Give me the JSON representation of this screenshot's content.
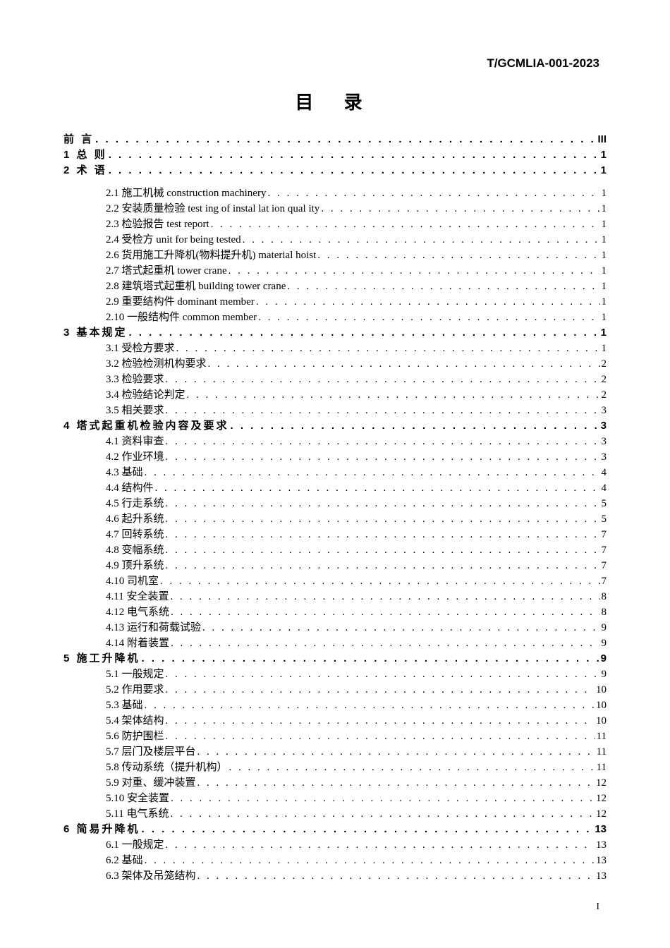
{
  "doc_code": "T/GCMLIA-001-2023",
  "toc_title": "目 录",
  "page_footer": "I",
  "entries": [
    {
      "level": 0,
      "label": "前 言",
      "page": "III"
    },
    {
      "level": 0,
      "label": "1 总 则",
      "page": "1"
    },
    {
      "level": 0,
      "label": "2 术 语",
      "page": "1",
      "preceded_by_spacer": false,
      "followed_by_spacer": true
    },
    {
      "level": 1,
      "label": "2.1 施工机械 construction machinery",
      "page": "1"
    },
    {
      "level": 1,
      "label": "2.2 安装质量检验 test ing of instal lat ion qual ity",
      "page": "1"
    },
    {
      "level": 1,
      "label": "2.3 检验报告 test report",
      "page": "1"
    },
    {
      "level": 1,
      "label": "2.4 受检方 unit for being tested",
      "page": "1"
    },
    {
      "level": 1,
      "label": "2.6 货用施工升降机(物料提升机) material hoist",
      "page": "1"
    },
    {
      "level": 1,
      "label": "2.7 塔式起重机 tower crane",
      "page": "1"
    },
    {
      "level": 1,
      "label": "2.8 建筑塔式起重机 building tower crane",
      "page": "1"
    },
    {
      "level": 1,
      "label": "2.9 重要结构件 dominant member",
      "page": "1"
    },
    {
      "level": 1,
      "label": "2.10 一般结构件 common member",
      "page": "1"
    },
    {
      "level": 0,
      "label": "3 基本规定",
      "page": "1"
    },
    {
      "level": 1,
      "label": "3.1 受检方要求",
      "page": "1"
    },
    {
      "level": 1,
      "label": "3.2 检验检测机构要求",
      "page": "2"
    },
    {
      "level": 1,
      "label": "3.3 检验要求",
      "page": "2"
    },
    {
      "level": 1,
      "label": "3.4 检验结论判定",
      "page": "2"
    },
    {
      "level": 1,
      "label": "3.5 相关要求",
      "page": "3"
    },
    {
      "level": 0,
      "label": "4 塔式起重机检验内容及要求",
      "page": "3"
    },
    {
      "level": 1,
      "label": "4.1 资料审查",
      "page": "3"
    },
    {
      "level": 1,
      "label": "4.2 作业环境",
      "page": "3"
    },
    {
      "level": 1,
      "label": "4.3 基础",
      "page": "4"
    },
    {
      "level": 1,
      "label": "4.4 结构件",
      "page": "4"
    },
    {
      "level": 1,
      "label": "4.5 行走系统",
      "page": "5"
    },
    {
      "level": 1,
      "label": "4.6 起升系统",
      "page": "5"
    },
    {
      "level": 1,
      "label": "4.7 回转系统",
      "page": "7"
    },
    {
      "level": 1,
      "label": "4.8 变幅系统",
      "page": "7"
    },
    {
      "level": 1,
      "label": "4.9 顶升系统",
      "page": "7"
    },
    {
      "level": 1,
      "label": "4.10 司机室",
      "page": "7"
    },
    {
      "level": 1,
      "label": "4.11 安全装置",
      "page": "8"
    },
    {
      "level": 1,
      "label": "4.12 电气系统",
      "page": "8"
    },
    {
      "level": 1,
      "label": "4.13 运行和荷载试验",
      "page": "9"
    },
    {
      "level": 1,
      "label": "4.14 附着装置",
      "page": "9"
    },
    {
      "level": 0,
      "label": "5 施工升降机",
      "page": "9"
    },
    {
      "level": 1,
      "label": "5.1 一般规定",
      "page": "9"
    },
    {
      "level": 1,
      "label": "5.2 作用要求",
      "page": "10"
    },
    {
      "level": 1,
      "label": "5.3 基础",
      "page": "10"
    },
    {
      "level": 1,
      "label": "5.4 架体结构",
      "page": "10"
    },
    {
      "level": 1,
      "label": "5.6 防护围栏",
      "page": "11"
    },
    {
      "level": 1,
      "label": "5.7 层门及楼层平台",
      "page": "11"
    },
    {
      "level": 1,
      "label": "5.8 传动系统（提升机构）",
      "page": "11"
    },
    {
      "level": 1,
      "label": "5.9 对重、缓冲装置",
      "page": "12"
    },
    {
      "level": 1,
      "label": "5.10 安全装置",
      "page": "12"
    },
    {
      "level": 1,
      "label": "5.11 电气系统",
      "page": "12"
    },
    {
      "level": 0,
      "label": "6 简易升降机",
      "page": "13"
    },
    {
      "level": 1,
      "label": "6.1 一般规定",
      "page": "13"
    },
    {
      "level": 1,
      "label": "6.2 基础",
      "page": "13"
    },
    {
      "level": 1,
      "label": "6.3 架体及吊笼结构",
      "page": "13"
    }
  ]
}
